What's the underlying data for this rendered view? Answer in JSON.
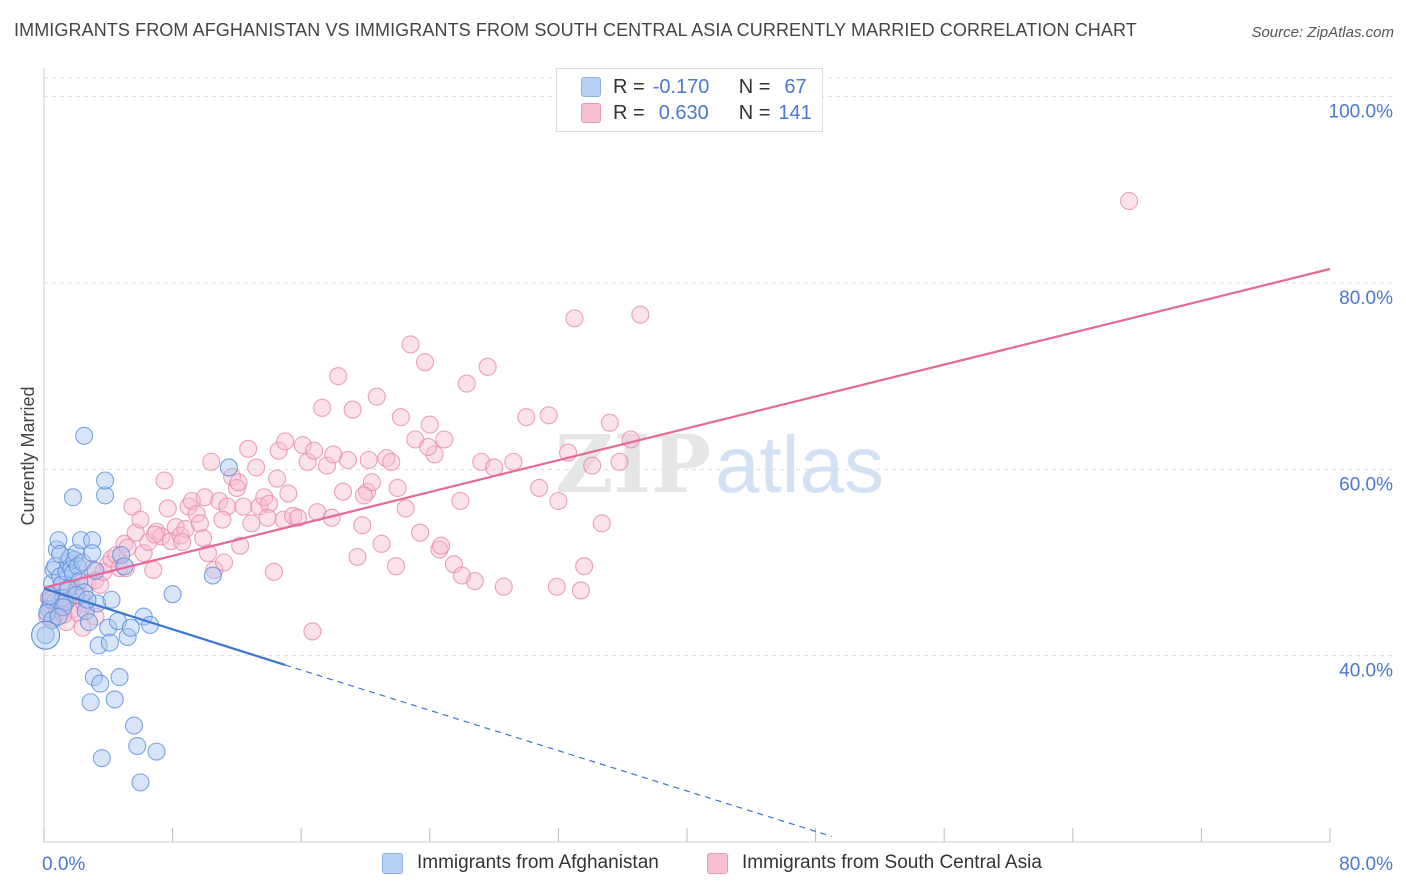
{
  "title": "IMMIGRANTS FROM AFGHANISTAN VS IMMIGRANTS FROM SOUTH CENTRAL ASIA CURRENTLY MARRIED CORRELATION CHART",
  "source": "Source: ZipAtlas.com",
  "watermark": {
    "zip": "ZIP",
    "atlas": "atlas"
  },
  "legend": {
    "r_label": "R =",
    "n_label": "N =",
    "afghanistan": {
      "r": "-0.170",
      "n": "67"
    },
    "south_central_asia": {
      "r": "0.630",
      "n": "141"
    }
  },
  "colors": {
    "blue": "#5b8fdc",
    "blue_fill": "#a9c6f0",
    "blue_line": "#3a76d2",
    "pink": "#e789ab",
    "pink_fill": "#f6bcd0",
    "pink_line": "#e4699a",
    "axis_label": "#4a78d0",
    "grid": "#dddddd"
  },
  "chart_data": {
    "type": "scatter",
    "title": "IMMIGRANTS FROM AFGHANISTAN VS IMMIGRANTS FROM SOUTH CENTRAL ASIA CURRENTLY MARRIED CORRELATION CHART",
    "xlabel": "",
    "ylabel": "Currently Married",
    "xlim": [
      0,
      80
    ],
    "ylim": [
      20,
      102
    ],
    "x_tick_labels": [
      "0.0%",
      "80.0%"
    ],
    "y_ticks": [
      40,
      60,
      80,
      100
    ],
    "y_tick_labels": [
      "40.0%",
      "60.0%",
      "80.0%",
      "100.0%"
    ],
    "grid": true,
    "legend_position": "top-center",
    "series": [
      {
        "name": "Immigrants from Afghanistan",
        "r": -0.17,
        "n": 67,
        "trend": {
          "x": [
            0,
            15
          ],
          "y": [
            47.2,
            39.0
          ]
        },
        "trend_dashed": {
          "x": [
            15,
            49
          ],
          "y": [
            39.0,
            20.6
          ]
        },
        "points": [
          [
            0.1,
            42.2
          ],
          [
            0.3,
            45.0
          ],
          [
            0.4,
            46.0
          ],
          [
            0.5,
            47.8
          ],
          [
            0.6,
            49.2
          ],
          [
            0.7,
            49.6
          ],
          [
            0.8,
            51.4
          ],
          [
            0.9,
            52.4
          ],
          [
            1.0,
            48.5
          ],
          [
            1.1,
            47.6
          ],
          [
            1.2,
            46.2
          ],
          [
            1.3,
            45.7
          ],
          [
            1.4,
            49.0
          ],
          [
            1.5,
            50.0
          ],
          [
            1.6,
            50.5
          ],
          [
            1.7,
            49.3
          ],
          [
            1.8,
            48.8
          ],
          [
            1.9,
            50.3
          ],
          [
            2.0,
            51.0
          ],
          [
            2.1,
            49.6
          ],
          [
            2.2,
            48.0
          ],
          [
            1.8,
            57.0
          ],
          [
            2.3,
            52.4
          ],
          [
            2.4,
            50.0
          ],
          [
            2.5,
            46.8
          ],
          [
            2.6,
            44.8
          ],
          [
            2.8,
            43.6
          ],
          [
            2.9,
            35.0
          ],
          [
            3.0,
            52.4
          ],
          [
            3.1,
            37.7
          ],
          [
            3.2,
            49.1
          ],
          [
            3.3,
            45.6
          ],
          [
            3.4,
            41.1
          ],
          [
            3.5,
            37.0
          ],
          [
            3.6,
            29.0
          ],
          [
            3.8,
            57.2
          ],
          [
            4.0,
            43.0
          ],
          [
            4.1,
            41.4
          ],
          [
            4.2,
            46.0
          ],
          [
            4.4,
            35.3
          ],
          [
            4.6,
            43.7
          ],
          [
            4.7,
            37.7
          ],
          [
            4.8,
            50.8
          ],
          [
            5.0,
            49.6
          ],
          [
            5.2,
            42.0
          ],
          [
            5.4,
            43.0
          ],
          [
            5.6,
            32.5
          ],
          [
            5.8,
            30.3
          ],
          [
            6.0,
            26.4
          ],
          [
            6.2,
            44.2
          ],
          [
            6.6,
            43.3
          ],
          [
            7.0,
            29.7
          ],
          [
            2.5,
            63.6
          ],
          [
            3.8,
            58.8
          ],
          [
            8.0,
            46.6
          ],
          [
            10.5,
            48.6
          ],
          [
            11.5,
            60.2
          ],
          [
            0.2,
            44.6
          ],
          [
            0.5,
            43.8
          ],
          [
            1.2,
            45.2
          ],
          [
            0.9,
            44.2
          ],
          [
            1.5,
            47.2
          ],
          [
            2.0,
            46.5
          ],
          [
            2.7,
            46.0
          ],
          [
            0.4,
            46.4
          ],
          [
            1.0,
            50.9
          ],
          [
            3.0,
            51.0
          ]
        ]
      },
      {
        "name": "Immigrants from South Central Asia",
        "r": 0.63,
        "n": 141,
        "trend": {
          "x": [
            0,
            80
          ],
          "y": [
            47.3,
            81.5
          ]
        },
        "points": [
          [
            0.2,
            44.2
          ],
          [
            0.4,
            45.4
          ],
          [
            0.5,
            46.6
          ],
          [
            0.6,
            44.0
          ],
          [
            0.8,
            45.1
          ],
          [
            1.0,
            46.2
          ],
          [
            1.1,
            44.8
          ],
          [
            1.3,
            45.5
          ],
          [
            1.4,
            43.6
          ],
          [
            1.5,
            46.0
          ],
          [
            1.6,
            47.4
          ],
          [
            1.8,
            45.0
          ],
          [
            2.0,
            48.0
          ],
          [
            2.1,
            44.6
          ],
          [
            2.3,
            46.4
          ],
          [
            2.5,
            45.6
          ],
          [
            2.7,
            47.8
          ],
          [
            3.0,
            49.3
          ],
          [
            3.2,
            48.1
          ],
          [
            3.5,
            47.6
          ],
          [
            3.7,
            49.0
          ],
          [
            4.0,
            49.8
          ],
          [
            4.2,
            50.4
          ],
          [
            4.5,
            50.8
          ],
          [
            4.7,
            49.4
          ],
          [
            5.0,
            52.0
          ],
          [
            5.2,
            51.6
          ],
          [
            5.5,
            56.0
          ],
          [
            5.7,
            53.2
          ],
          [
            6.0,
            54.6
          ],
          [
            6.2,
            51.0
          ],
          [
            6.5,
            52.2
          ],
          [
            6.8,
            49.2
          ],
          [
            7.0,
            53.3
          ],
          [
            7.3,
            52.8
          ],
          [
            7.5,
            58.8
          ],
          [
            7.7,
            55.8
          ],
          [
            7.9,
            52.3
          ],
          [
            8.2,
            53.8
          ],
          [
            8.5,
            52.9
          ],
          [
            8.8,
            53.6
          ],
          [
            9.0,
            56.0
          ],
          [
            9.2,
            56.6
          ],
          [
            9.5,
            55.2
          ],
          [
            9.7,
            54.2
          ],
          [
            10.0,
            57.0
          ],
          [
            10.2,
            51.0
          ],
          [
            10.4,
            60.8
          ],
          [
            10.6,
            49.2
          ],
          [
            10.9,
            56.6
          ],
          [
            11.2,
            50.0
          ],
          [
            11.4,
            56.0
          ],
          [
            11.7,
            59.2
          ],
          [
            12.0,
            58.0
          ],
          [
            12.2,
            51.8
          ],
          [
            12.4,
            56.0
          ],
          [
            12.7,
            62.2
          ],
          [
            12.9,
            54.2
          ],
          [
            13.2,
            60.2
          ],
          [
            13.4,
            56.0
          ],
          [
            13.7,
            57.0
          ],
          [
            14.0,
            56.3
          ],
          [
            14.3,
            49.0
          ],
          [
            14.6,
            62.0
          ],
          [
            14.9,
            54.6
          ],
          [
            15.2,
            57.4
          ],
          [
            15.5,
            55.0
          ],
          [
            15.8,
            54.8
          ],
          [
            16.1,
            62.6
          ],
          [
            16.4,
            60.8
          ],
          [
            16.8,
            62.0
          ],
          [
            17.0,
            55.4
          ],
          [
            17.3,
            66.6
          ],
          [
            17.6,
            60.4
          ],
          [
            17.9,
            54.8
          ],
          [
            18.3,
            70.0
          ],
          [
            18.6,
            57.6
          ],
          [
            18.9,
            61.0
          ],
          [
            19.2,
            66.4
          ],
          [
            19.5,
            50.6
          ],
          [
            19.8,
            54.0
          ],
          [
            20.1,
            57.6
          ],
          [
            20.4,
            58.6
          ],
          [
            20.7,
            67.8
          ],
          [
            21.0,
            52.0
          ],
          [
            21.3,
            61.2
          ],
          [
            21.6,
            60.8
          ],
          [
            21.9,
            49.6
          ],
          [
            22.2,
            65.6
          ],
          [
            22.5,
            55.8
          ],
          [
            22.8,
            73.4
          ],
          [
            23.1,
            63.2
          ],
          [
            23.4,
            53.2
          ],
          [
            23.7,
            71.5
          ],
          [
            24.0,
            64.8
          ],
          [
            24.3,
            61.6
          ],
          [
            24.6,
            51.4
          ],
          [
            24.9,
            63.2
          ],
          [
            25.5,
            49.8
          ],
          [
            25.9,
            56.6
          ],
          [
            26.3,
            69.2
          ],
          [
            26.8,
            48.0
          ],
          [
            27.2,
            60.8
          ],
          [
            27.6,
            71.0
          ],
          [
            28.0,
            60.2
          ],
          [
            28.6,
            47.4
          ],
          [
            29.2,
            60.8
          ],
          [
            30.0,
            65.6
          ],
          [
            30.8,
            58.0
          ],
          [
            31.4,
            65.8
          ],
          [
            32.0,
            56.6
          ],
          [
            32.6,
            61.8
          ],
          [
            33.0,
            76.2
          ],
          [
            33.6,
            49.6
          ],
          [
            34.1,
            60.4
          ],
          [
            34.7,
            54.2
          ],
          [
            35.2,
            65.0
          ],
          [
            35.8,
            60.8
          ],
          [
            36.5,
            63.2
          ],
          [
            37.1,
            76.6
          ],
          [
            26.0,
            48.6
          ],
          [
            33.4,
            47.0
          ],
          [
            31.9,
            47.4
          ],
          [
            16.7,
            42.6
          ],
          [
            22.0,
            58.0
          ],
          [
            12.1,
            58.6
          ],
          [
            8.6,
            52.2
          ],
          [
            3.2,
            44.2
          ],
          [
            5.1,
            49.4
          ],
          [
            6.9,
            53.0
          ],
          [
            9.9,
            52.6
          ],
          [
            11.1,
            54.6
          ],
          [
            13.9,
            54.8
          ],
          [
            15.0,
            63.0
          ],
          [
            20.2,
            61.0
          ],
          [
            19.9,
            57.2
          ],
          [
            23.9,
            62.4
          ],
          [
            24.7,
            51.8
          ],
          [
            18.0,
            61.6
          ],
          [
            14.5,
            59.0
          ],
          [
            67.5,
            88.8
          ],
          [
            0.3,
            46.2
          ],
          [
            0.7,
            45.8
          ],
          [
            1.2,
            44.4
          ],
          [
            1.9,
            46.8
          ],
          [
            2.4,
            43.0
          ]
        ]
      }
    ]
  },
  "bottom_legend": {
    "afghanistan": "Immigrants from Afghanistan",
    "south_central_asia": "Immigrants from South Central Asia"
  }
}
